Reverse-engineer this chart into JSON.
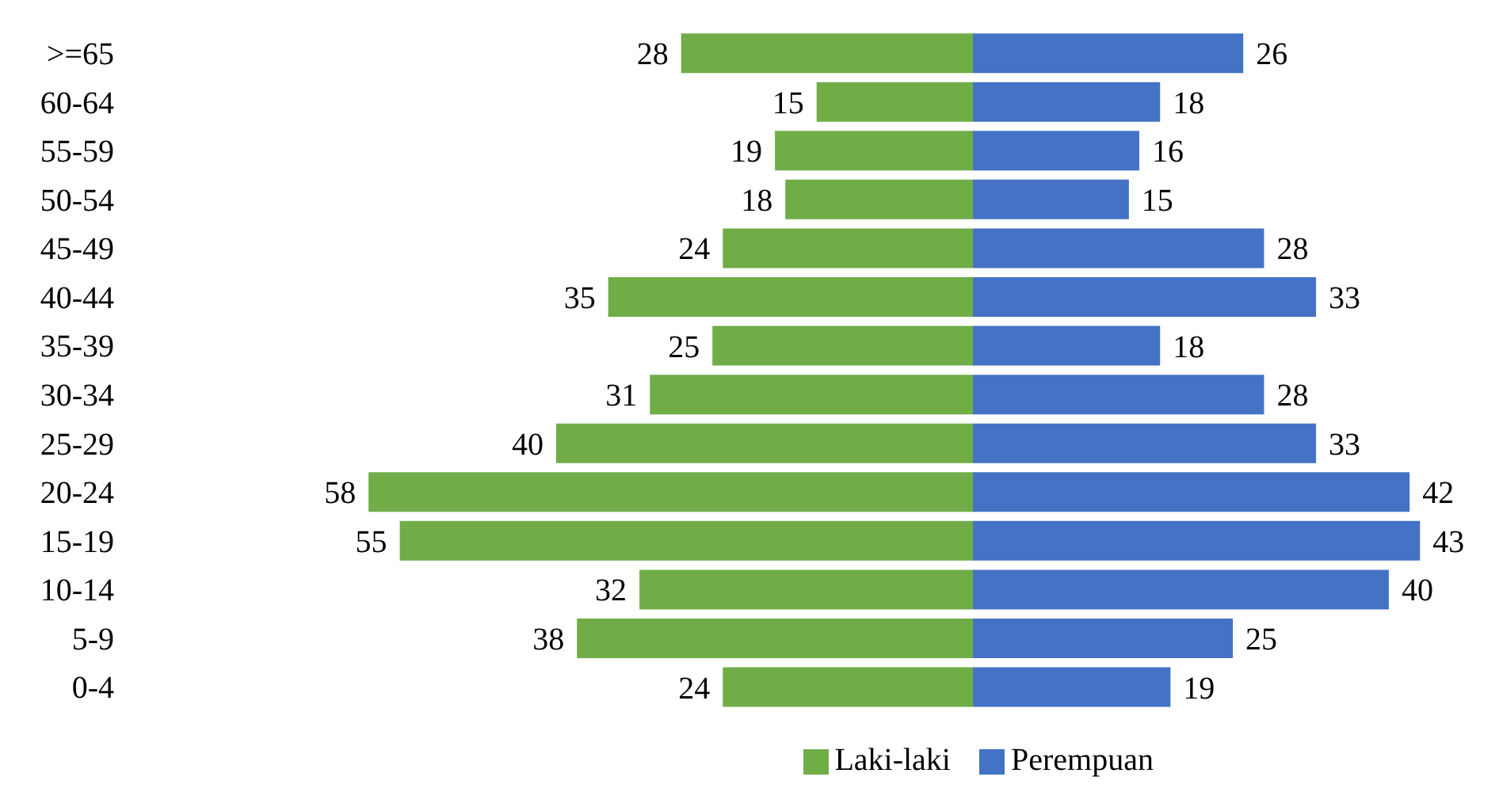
{
  "chart_data": [
    {
      "type": "bar",
      "orientation": "horizontal",
      "categories": [
        ">=65",
        "60-64",
        "55-59",
        "50-54",
        "45-49",
        "40-44",
        "35-39",
        "30-34",
        "25-29",
        "20-24",
        "15-19",
        "10-14",
        "5-9",
        "0-4"
      ],
      "tick_labels": "y",
      "data_labels": true,
      "legend": "bottom right",
      "series": [
        {
          "name": "Laki-laki",
          "color": "#70ad47",
          "values": [
            28,
            15,
            19,
            18,
            24,
            35,
            25,
            31,
            40,
            58,
            55,
            32,
            38,
            24
          ]
        }
      ]
    },
    {
      "type": "bar",
      "orientation": "horizontal",
      "tick_labels": false,
      "data_labels": true,
      "legend": "bottom left",
      "series": [
        {
          "name": "Perempuan",
          "color": "#4472c4",
          "values": [
            26,
            18,
            16,
            15,
            28,
            33,
            18,
            28,
            33,
            42,
            43,
            40,
            25,
            19
          ]
        }
      ]
    }
  ]
}
